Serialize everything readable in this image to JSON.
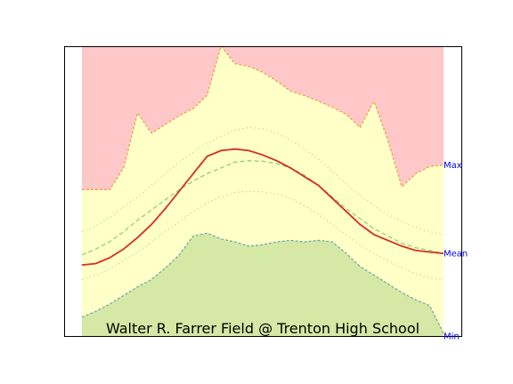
{
  "chart_data": {
    "type": "area",
    "title": "Walter R. Farrer Field @ Trenton High School",
    "xlabel": "",
    "ylabel": "",
    "x": [
      0,
      2,
      4,
      6,
      8,
      10,
      12,
      14,
      16,
      18,
      20,
      22,
      24,
      26,
      28,
      30,
      32,
      34,
      36,
      38,
      40,
      42,
      44,
      46,
      48,
      50,
      52
    ],
    "ylim": [
      0,
      100
    ],
    "grid": false,
    "legend": "none",
    "right_labels": [
      "Max",
      "Mean",
      "Min"
    ],
    "series": [
      {
        "role": "record_high",
        "values": [
          50.5,
          50.5,
          50.5,
          58,
          77,
          70,
          73,
          76,
          78.5,
          83,
          100,
          94,
          93,
          91,
          88,
          84.5,
          83,
          81,
          79,
          76.5,
          72,
          81,
          67.5,
          51.5,
          56,
          58.5,
          59
        ]
      },
      {
        "role": "normal_high",
        "values": [
          36,
          38,
          41,
          44.5,
          48,
          52,
          56,
          60,
          63.5,
          66.5,
          69,
          71,
          72,
          71.5,
          70,
          67.5,
          64.5,
          61,
          57,
          52.5,
          48.5,
          45,
          42,
          39.5,
          37.5,
          36,
          35
        ]
      },
      {
        "role": "mean",
        "values": [
          24.5,
          25,
          27,
          30,
          34,
          38.5,
          44,
          50,
          56,
          62,
          64,
          64.5,
          64,
          62.5,
          60.5,
          58,
          55,
          52,
          47.5,
          43,
          38.5,
          35,
          33,
          31,
          29.5,
          29,
          28.5
        ]
      },
      {
        "role": "normal_mean",
        "values": [
          28,
          30,
          32.5,
          36,
          40,
          43.5,
          47,
          50.5,
          53.5,
          56,
          58,
          60,
          60.5,
          60.3,
          59.5,
          58,
          55.5,
          52,
          48,
          44,
          40.5,
          37,
          34.5,
          32,
          30.5,
          29.5,
          28.5
        ]
      },
      {
        "role": "normal_low",
        "values": [
          19.5,
          21,
          23,
          26,
          29,
          32.5,
          36,
          39.5,
          43,
          46,
          48,
          49.5,
          50,
          49.8,
          49,
          47.5,
          45,
          42,
          38.5,
          35,
          31.5,
          28.5,
          26,
          23.5,
          21.5,
          20,
          19.5
        ]
      },
      {
        "role": "record_low",
        "values": [
          6.5,
          8.5,
          11,
          14,
          17,
          19.5,
          23.5,
          28,
          34.5,
          35.5,
          33.5,
          32.5,
          31,
          31.5,
          32.5,
          33,
          32.5,
          33,
          32.5,
          28.5,
          24,
          21,
          18,
          15,
          12.5,
          10.5,
          1
        ]
      }
    ]
  },
  "colors": {
    "record_high_fill": "#ffc8c8",
    "normal_band_fill": "#ffffc8",
    "record_low_fill": "#d5e8a5",
    "record_high_line": "#f29c43",
    "record_low_line": "#6aa8a3",
    "mean_line": "#d62d20",
    "normal_mean_line": "#8fcf7f",
    "normal_bound_line": "#c9dca0",
    "label_color": "#0000ee"
  }
}
